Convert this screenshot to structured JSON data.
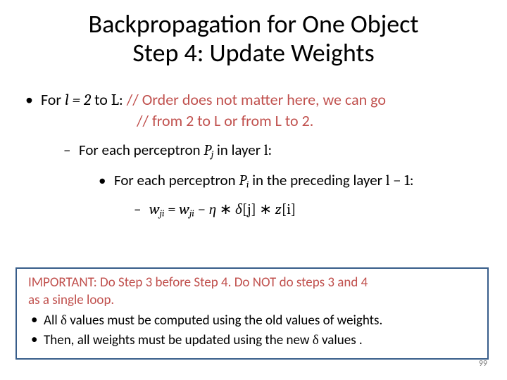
{
  "title_line1": "Backpropagation for One Object",
  "title_line2": "Step 4: Update Weights",
  "colors": {
    "comment": "#c0504d",
    "box_border": "#385d8a",
    "pagenum": "#7f7f7f",
    "text": "#000000",
    "background": "#ffffff"
  },
  "bullet1_prefix": "For ",
  "bullet1_math": "l = 2",
  "bullet1_mid": " to ",
  "bullet1_math2": "L",
  "bullet1_colon": ": ",
  "comment1_a": "// Order does not matter here, we can go",
  "comment1_b": "// from 2 to L or from L to 2.",
  "bullet2_prefix": "For each perceptron ",
  "bullet2_math": "P",
  "bullet2_sub": "j",
  "bullet2_mid": " in layer ",
  "bullet2_math2": "l",
  "bullet2_colon": ":",
  "bullet3_prefix": "For each perceptron ",
  "bullet3_math": "P",
  "bullet3_sub": "i",
  "bullet3_mid": " in the preceding layer ",
  "bullet3_math2": "l − 1",
  "bullet3_colon": ":",
  "formula_lhs_w": "w",
  "formula_lhs_sub": "ji",
  "formula_eq": " = ",
  "formula_rhs_w": "w",
  "formula_rhs_sub": "ji",
  "formula_minus": " − ",
  "formula_eta": "η",
  "formula_star1": " ∗ ",
  "formula_delta": "δ",
  "formula_bj": "[j]",
  "formula_star2": " ∗ ",
  "formula_z": "z",
  "formula_bi": "[i]",
  "important_label": "IMPORTANT:",
  "important_line1_a": " Do Step 3 before Step 4. Do NOT do steps 3 and 4",
  "important_line1_b": "as a single loop.",
  "important_b1_a": "All ",
  "important_b1_delta": "δ",
  "important_b1_b": " values must be computed using the old values of weights.",
  "important_b2_a": "Then, all weights must be updated using the new ",
  "important_b2_delta": "δ",
  "important_b2_b": " values .",
  "page_num": "99"
}
